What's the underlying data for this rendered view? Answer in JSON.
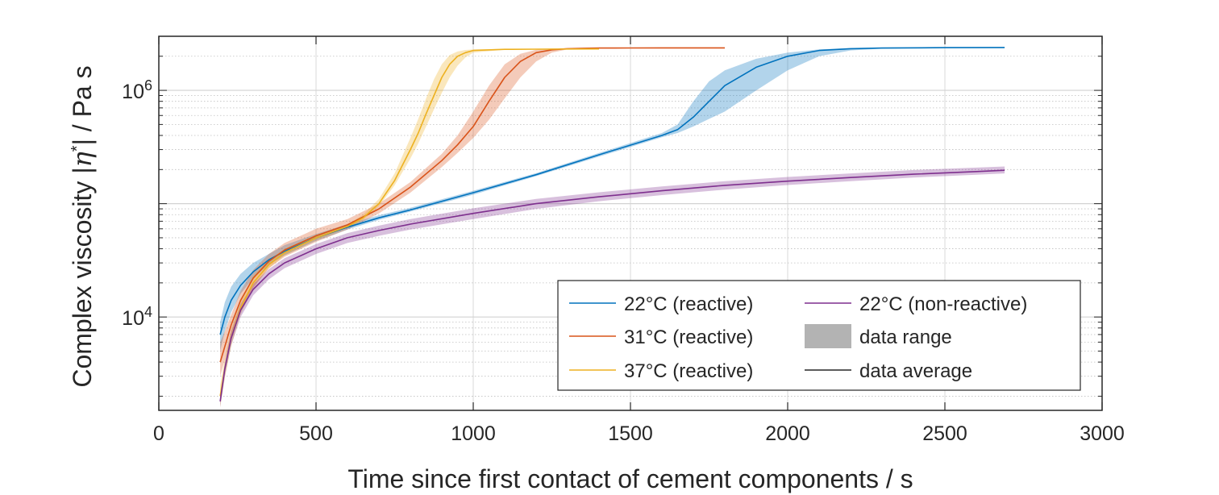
{
  "chart_data": {
    "type": "line",
    "xlabel": "Time since first contact of cement components / s",
    "ylabel_parts": [
      "Complex viscosity |",
      "η",
      "*",
      "| / Pa s"
    ],
    "xlim": [
      0,
      3000
    ],
    "ylim": [
      1500,
      3000000
    ],
    "yscale": "log",
    "grid": true,
    "x_ticks": [
      {
        "value": 0,
        "label": "0"
      },
      {
        "value": 500,
        "label": "500"
      },
      {
        "value": 1000,
        "label": "1000"
      },
      {
        "value": 1500,
        "label": "1500"
      },
      {
        "value": 2000,
        "label": "2000"
      },
      {
        "value": 2500,
        "label": "2500"
      },
      {
        "value": 3000,
        "label": "3000"
      }
    ],
    "y_ticks": [
      {
        "value": 10000,
        "base": "10",
        "exp": "4"
      },
      {
        "value": 1000000,
        "base": "10",
        "exp": "6"
      }
    ],
    "legend_position": "bottom-right",
    "series": [
      {
        "name": "22°C (reactive)",
        "color": "#0072BD",
        "x": [
          195,
          210,
          230,
          260,
          300,
          350,
          400,
          500,
          600,
          700,
          800,
          1000,
          1200,
          1400,
          1600,
          1650,
          1700,
          1750,
          1800,
          1900,
          2000,
          2100,
          2200,
          2300,
          2500,
          2690
        ],
        "y": [
          7000,
          10000,
          14000,
          19000,
          25000,
          32000,
          38000,
          50000,
          62000,
          75000,
          88000,
          125000,
          180000,
          270000,
          400000,
          450000,
          580000,
          800000,
          1100000,
          1600000,
          2000000,
          2250000,
          2330000,
          2360000,
          2380000,
          2390000
        ],
        "y_low": [
          5000,
          7500,
          11000,
          16000,
          22000,
          29000,
          35000,
          47000,
          59000,
          72000,
          85000,
          120000,
          175000,
          260000,
          385000,
          420000,
          480000,
          560000,
          650000,
          1000000,
          1500000,
          2000000,
          2250000,
          2330000,
          2370000,
          2385000
        ],
        "y_high": [
          9000,
          13500,
          18500,
          24000,
          30000,
          36000,
          43000,
          54000,
          66000,
          79000,
          92000,
          130000,
          186000,
          280000,
          420000,
          500000,
          800000,
          1200000,
          1500000,
          1900000,
          2150000,
          2300000,
          2360000,
          2380000,
          2390000,
          2400000
        ]
      },
      {
        "name": "31°C (reactive)",
        "color": "#D95319",
        "x": [
          195,
          210,
          230,
          260,
          300,
          350,
          400,
          500,
          600,
          700,
          800,
          900,
          950,
          1000,
          1050,
          1100,
          1150,
          1200,
          1250,
          1300,
          1350,
          1400,
          1500,
          1600,
          1800
        ],
        "y": [
          4000,
          5500,
          8500,
          14000,
          22000,
          31000,
          39000,
          52000,
          65000,
          90000,
          140000,
          240000,
          330000,
          480000,
          800000,
          1300000,
          1800000,
          2150000,
          2280000,
          2330000,
          2350000,
          2360000,
          2365000,
          2370000,
          2370000
        ],
        "y_low": [
          3000,
          4200,
          6500,
          11000,
          18000,
          27000,
          34000,
          46000,
          59000,
          82000,
          125000,
          210000,
          280000,
          380000,
          550000,
          850000,
          1300000,
          1800000,
          2150000,
          2300000,
          2340000,
          2355000,
          2362000,
          2368000,
          2370000
        ],
        "y_high": [
          6000,
          7500,
          10500,
          17000,
          26000,
          36000,
          45000,
          60000,
          73000,
          100000,
          155000,
          275000,
          400000,
          650000,
          1100000,
          1700000,
          2100000,
          2280000,
          2340000,
          2360000,
          2365000,
          2368000,
          2370000,
          2372000,
          2372000
        ]
      },
      {
        "name": "37°C (reactive)",
        "color": "#EDB120",
        "x": [
          195,
          210,
          230,
          260,
          300,
          350,
          400,
          500,
          600,
          650,
          700,
          750,
          800,
          825,
          850,
          875,
          900,
          925,
          950,
          975,
          1000,
          1100,
          1200,
          1400
        ],
        "y": [
          2000,
          3500,
          6500,
          12000,
          20000,
          29000,
          37000,
          50000,
          63000,
          75000,
          100000,
          160000,
          300000,
          420000,
          620000,
          900000,
          1300000,
          1700000,
          2000000,
          2150000,
          2250000,
          2300000,
          2310000,
          2320000
        ],
        "y_low": [
          1600,
          2900,
          5500,
          10500,
          18000,
          27000,
          35000,
          48000,
          61000,
          72000,
          95000,
          145000,
          250000,
          340000,
          480000,
          680000,
          950000,
          1300000,
          1650000,
          1950000,
          2150000,
          2280000,
          2300000,
          2315000
        ],
        "y_high": [
          2500,
          4300,
          7800,
          14000,
          23000,
          32000,
          40000,
          53000,
          66000,
          80000,
          110000,
          185000,
          380000,
          560000,
          850000,
          1250000,
          1700000,
          2050000,
          2200000,
          2270000,
          2300000,
          2320000,
          2325000,
          2330000
        ]
      },
      {
        "name": "22°C (non-reactive)",
        "color": "#7E2F8E",
        "x": [
          195,
          210,
          230,
          260,
          300,
          350,
          400,
          500,
          600,
          700,
          800,
          1000,
          1200,
          1400,
          1600,
          1800,
          2000,
          2200,
          2400,
          2600,
          2690
        ],
        "y": [
          1800,
          3500,
          6500,
          11500,
          17500,
          24000,
          30000,
          40000,
          50000,
          58000,
          66000,
          82000,
          100000,
          115000,
          130000,
          145000,
          158000,
          170000,
          182000,
          192000,
          197000
        ],
        "y_low": [
          1600,
          3000,
          5600,
          10000,
          15500,
          21500,
          27000,
          36000,
          45000,
          52000,
          59000,
          73000,
          90000,
          105000,
          119000,
          133000,
          146000,
          158000,
          170000,
          180000,
          185000
        ],
        "y_high": [
          2000,
          4000,
          7500,
          13000,
          19500,
          26500,
          33000,
          44000,
          55000,
          64000,
          73000,
          91000,
          110000,
          126000,
          142000,
          158000,
          172000,
          185000,
          198000,
          208000,
          213000
        ]
      }
    ],
    "legend_entries": [
      {
        "label": "22°C (reactive)",
        "kind": "line",
        "color": "#0072BD"
      },
      {
        "label": "31°C (reactive)",
        "kind": "line",
        "color": "#D95319"
      },
      {
        "label": "37°C (reactive)",
        "kind": "line",
        "color": "#EDB120"
      },
      {
        "label": "22°C (non-reactive)",
        "kind": "line",
        "color": "#7E2F8E"
      },
      {
        "label": "data range",
        "kind": "patch",
        "color": "#B3B3B3"
      },
      {
        "label": "data average",
        "kind": "line",
        "color": "#262626"
      }
    ]
  }
}
